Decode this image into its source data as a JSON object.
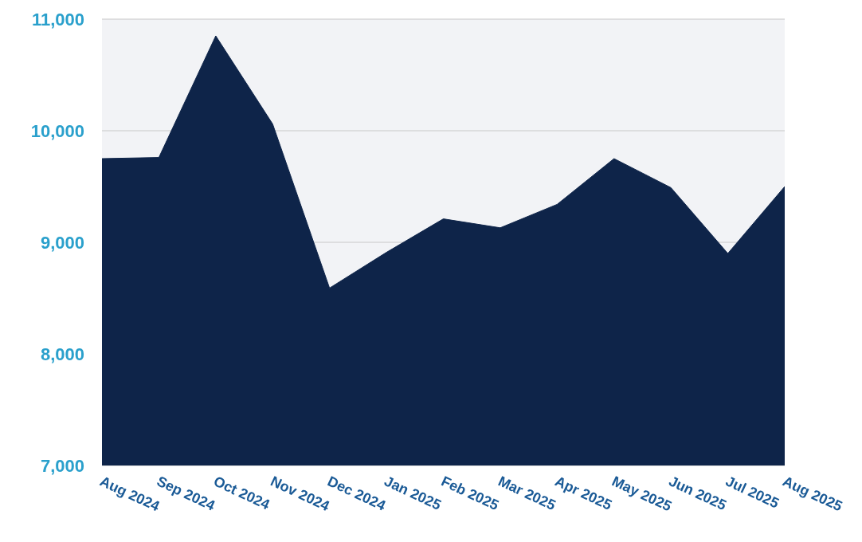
{
  "chart_data": {
    "type": "area",
    "categories": [
      "Aug 2024",
      "Sep 2024",
      "Oct 2024",
      "Nov 2024",
      "Dec 2024",
      "Jan 2025",
      "Feb 2025",
      "Mar 2025",
      "Apr 2025",
      "May 2025",
      "Jun 2025",
      "Jul 2025",
      "Aug 2025"
    ],
    "values": [
      9750,
      9760,
      10850,
      10060,
      8590,
      8910,
      9210,
      9130,
      9340,
      9750,
      9490,
      8900,
      9500
    ],
    "color": "#0e2449",
    "ylim": [
      7000,
      11000
    ],
    "yticks": [
      {
        "value": 7000,
        "label": "7,000"
      },
      {
        "value": 8000,
        "label": "8,000"
      },
      {
        "value": 9000,
        "label": "9,000"
      },
      {
        "value": 10000,
        "label": "10,000"
      },
      {
        "value": 11000,
        "label": "11,000"
      }
    ],
    "grid": "y"
  }
}
